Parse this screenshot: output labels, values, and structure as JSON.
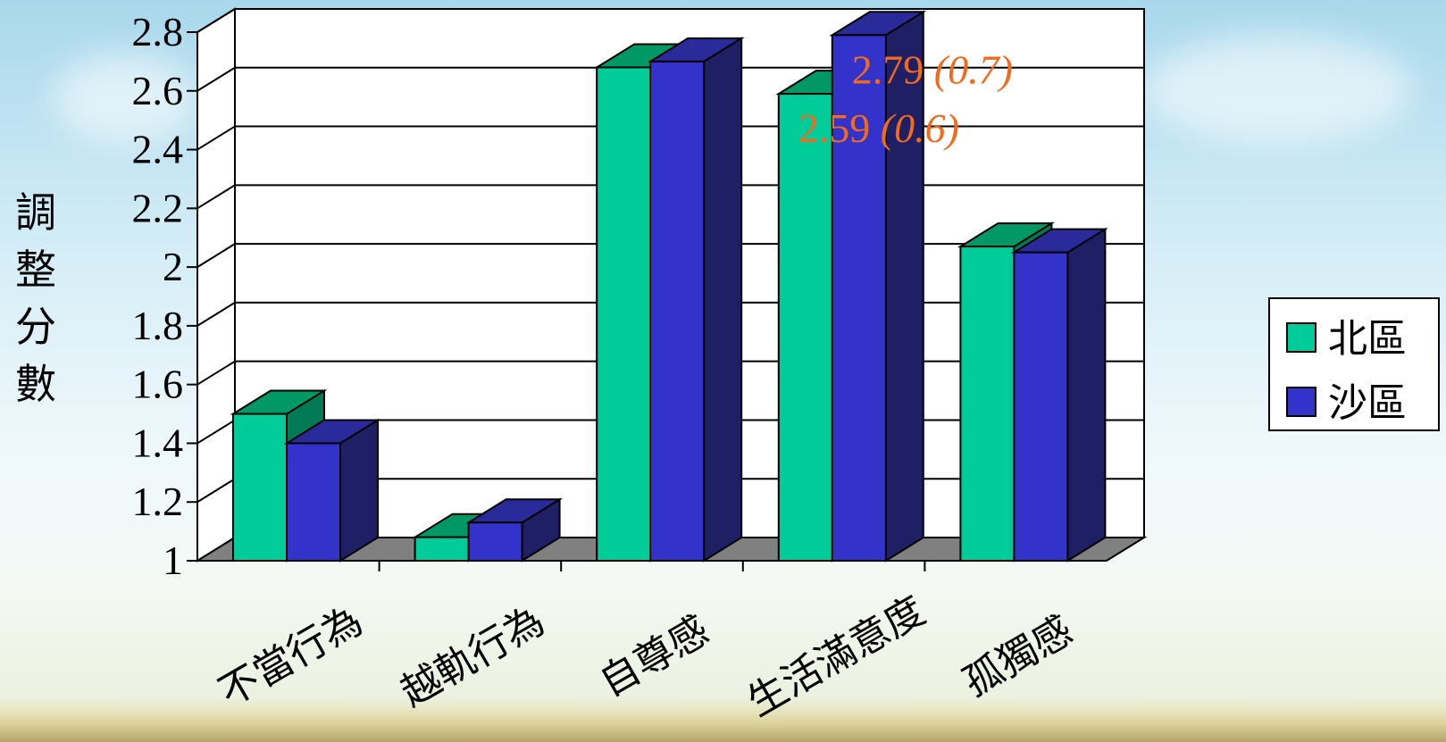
{
  "chart_data": {
    "type": "bar",
    "three_d": true,
    "ylabel": "調整分數",
    "xlabel": "",
    "ylim": [
      1,
      2.8
    ],
    "yticks": [
      "1",
      "1.2",
      "1.4",
      "1.6",
      "1.8",
      "2",
      "2.2",
      "2.4",
      "2.6",
      "2.8"
    ],
    "grid": true,
    "legend_position": "right",
    "categories": [
      "不當行為",
      "越軌行為",
      "自尊感",
      "生活滿意度",
      "孤獨感"
    ],
    "series": [
      {
        "name": "北區",
        "values": [
          1.5,
          1.08,
          2.68,
          2.59,
          2.07
        ],
        "color": "#00cc99",
        "top_color": "#009966",
        "side_color": "#007a55"
      },
      {
        "name": "沙區",
        "values": [
          1.4,
          1.13,
          2.7,
          2.79,
          2.05
        ],
        "color": "#3333cc",
        "top_color": "#2a2a9a",
        "side_color": "#1f1f66"
      }
    ],
    "annotations": [
      {
        "value": "2.59",
        "extra": "(0.6)",
        "category": "生活滿意度",
        "series": "北區"
      },
      {
        "value": "2.79",
        "extra": "(0.7)",
        "category": "生活滿意度",
        "series": "沙區"
      }
    ]
  }
}
